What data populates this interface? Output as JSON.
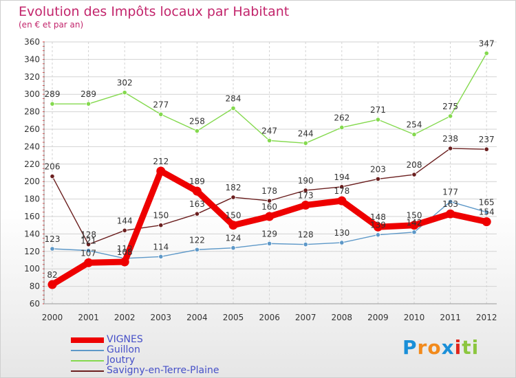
{
  "header": {
    "title": "Evolution des Impôts locaux par Habitant",
    "subtitle": "(en € et par an)"
  },
  "logo": {
    "letters": [
      "P",
      "r",
      "o",
      "x",
      "i",
      "t",
      "i"
    ],
    "colors": [
      "#1a8fd8",
      "#f28a1c",
      "#f28a1c",
      "#1a8fd8",
      "#e0251b",
      "#8cc63f",
      "#8cc63f"
    ]
  },
  "chart_data": {
    "type": "line",
    "x": [
      "2000",
      "2001",
      "2002",
      "2003",
      "2004",
      "2005",
      "2006",
      "2007",
      "2008",
      "2009",
      "2010",
      "2011",
      "2012"
    ],
    "ylim": [
      60,
      360
    ],
    "yticks": [
      60,
      80,
      100,
      120,
      140,
      160,
      180,
      200,
      220,
      240,
      260,
      280,
      300,
      320,
      340,
      360
    ],
    "grid": true,
    "legend_position": "bottom-left",
    "series": [
      {
        "name": "VIGNES",
        "color": "#ee0000",
        "values": [
          82,
          107,
          108,
          212,
          189,
          150,
          160,
          173,
          178,
          148,
          150,
          163,
          154
        ],
        "labels": [
          "82",
          "107",
          "108",
          "212",
          "189",
          "150",
          "160",
          "173",
          "178",
          "148",
          "150",
          "163",
          "154"
        ],
        "emphasis": true
      },
      {
        "name": "Guillon",
        "color": "#5d98c8",
        "values": [
          123,
          121,
          112,
          114,
          122,
          124,
          129,
          128,
          130,
          139,
          142,
          177,
          165
        ],
        "labels": [
          "123",
          "121",
          "112",
          "114",
          "122",
          "124",
          "129",
          "128",
          "130",
          "139",
          "142",
          "177",
          "165"
        ]
      },
      {
        "name": "Joutry",
        "color": "#84d94e",
        "values": [
          289,
          289,
          302,
          277,
          258,
          284,
          247,
          244,
          262,
          271,
          254,
          275,
          347
        ],
        "labels": [
          "289",
          "289",
          "302",
          "277",
          "258",
          "284",
          "247",
          "244",
          "262",
          "271",
          "254",
          "275",
          "347"
        ]
      },
      {
        "name": "Savigny-en-Terre-Plaine",
        "color": "#6b1f1f",
        "values": [
          206,
          128,
          144,
          150,
          163,
          182,
          178,
          190,
          194,
          203,
          208,
          238,
          237
        ],
        "labels": [
          "206",
          "128",
          "144",
          "150",
          "163",
          "182",
          "178",
          "190",
          "194",
          "203",
          "208",
          "238",
          "237"
        ]
      }
    ]
  }
}
